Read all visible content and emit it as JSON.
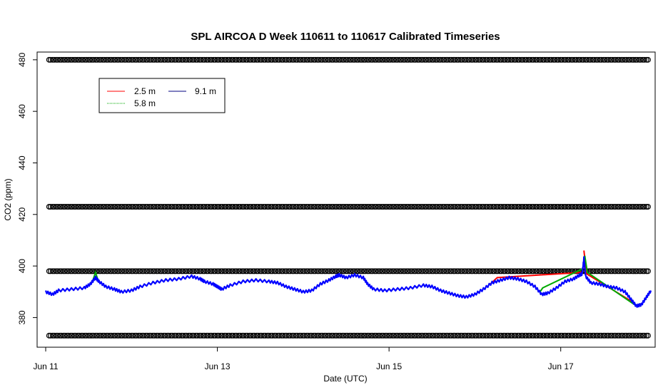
{
  "chart_data": {
    "type": "line",
    "title": "SPL AIRCOA D  Week 110611 to 110617  Calibrated Timeseries",
    "xlabel": "Date (UTC)",
    "ylabel": "CO2 (ppm)",
    "x_axis": "time",
    "xlim_days": [
      -0.1,
      7.1
    ],
    "ylim": [
      368.5,
      483
    ],
    "x_ticks": [
      {
        "day": 0,
        "label": "Jun 11"
      },
      {
        "day": 2,
        "label": "Jun 13"
      },
      {
        "day": 4,
        "label": "Jun 15"
      },
      {
        "day": 6,
        "label": "Jun 17"
      }
    ],
    "y_ticks": [
      380,
      400,
      420,
      440,
      460,
      480
    ],
    "legend": {
      "position": "top-left",
      "entries": [
        {
          "name": "2.5 m",
          "color": "#ff0000"
        },
        {
          "name": "5.8 m",
          "color": "#00aa00"
        },
        {
          "name": "9.1 m",
          "color": "#0000ff"
        }
      ]
    },
    "series": [
      {
        "name": "9.1 m",
        "color": "#0000ff",
        "points": [
          [
            0.0,
            390.0
          ],
          [
            0.08,
            389.0
          ],
          [
            0.15,
            390.5
          ],
          [
            0.3,
            391.0
          ],
          [
            0.45,
            391.5
          ],
          [
            0.52,
            393.0
          ],
          [
            0.58,
            395.5
          ],
          [
            0.62,
            394.0
          ],
          [
            0.7,
            392.0
          ],
          [
            0.8,
            391.0
          ],
          [
            0.88,
            390.0
          ],
          [
            1.0,
            390.5
          ],
          [
            1.1,
            392.0
          ],
          [
            1.25,
            393.5
          ],
          [
            1.4,
            394.5
          ],
          [
            1.55,
            395.0
          ],
          [
            1.7,
            396.0
          ],
          [
            1.8,
            395.0
          ],
          [
            1.85,
            394.0
          ],
          [
            1.95,
            393.0
          ],
          [
            2.0,
            392.0
          ],
          [
            2.05,
            391.0
          ],
          [
            2.15,
            392.5
          ],
          [
            2.3,
            394.0
          ],
          [
            2.45,
            394.5
          ],
          [
            2.6,
            394.0
          ],
          [
            2.7,
            393.5
          ],
          [
            2.8,
            392.0
          ],
          [
            2.9,
            391.0
          ],
          [
            3.0,
            390.0
          ],
          [
            3.1,
            390.5
          ],
          [
            3.2,
            393.0
          ],
          [
            3.3,
            394.5
          ],
          [
            3.38,
            396.0
          ],
          [
            3.42,
            396.5
          ],
          [
            3.5,
            395.5
          ],
          [
            3.6,
            396.5
          ],
          [
            3.7,
            395.5
          ],
          [
            3.75,
            393.0
          ],
          [
            3.82,
            391.0
          ],
          [
            3.95,
            390.5
          ],
          [
            4.1,
            391.0
          ],
          [
            4.25,
            391.5
          ],
          [
            4.4,
            392.5
          ],
          [
            4.5,
            392.0
          ],
          [
            4.6,
            390.5
          ],
          [
            4.7,
            389.5
          ],
          [
            4.8,
            388.5
          ],
          [
            4.9,
            388.0
          ],
          [
            5.0,
            389.0
          ],
          [
            5.1,
            391.0
          ],
          [
            5.2,
            393.5
          ],
          [
            5.3,
            394.5
          ],
          [
            5.4,
            395.5
          ],
          [
            5.5,
            395.0
          ],
          [
            5.6,
            394.0
          ],
          [
            5.7,
            392.0
          ],
          [
            5.78,
            389.0
          ],
          [
            5.85,
            389.5
          ],
          [
            5.95,
            391.5
          ],
          [
            6.05,
            394.0
          ],
          [
            6.15,
            395.0
          ],
          [
            6.22,
            396.5
          ],
          [
            6.25,
            397.0
          ],
          [
            6.27,
            403.0
          ],
          [
            6.29,
            396.0
          ],
          [
            6.35,
            393.5
          ],
          [
            6.45,
            393.0
          ],
          [
            6.55,
            392.0
          ],
          [
            6.65,
            391.5
          ],
          [
            6.75,
            390.0
          ],
          [
            6.82,
            387.0
          ],
          [
            6.88,
            384.5
          ],
          [
            6.94,
            385.0
          ],
          [
            7.0,
            388.0
          ],
          [
            7.05,
            390.5
          ]
        ]
      },
      {
        "name": "2.5 m",
        "color": "#ff0000",
        "points": [
          [
            5.18,
            393.0
          ],
          [
            5.26,
            395.5
          ],
          [
            6.24,
            397.5
          ],
          [
            6.27,
            406.0
          ],
          [
            6.3,
            397.0
          ],
          [
            6.84,
            386.0
          ],
          [
            6.9,
            384.0
          ]
        ]
      },
      {
        "name": "5.8 m",
        "color": "#00aa00",
        "points": [
          [
            0.55,
            394.5
          ],
          [
            0.58,
            397.5
          ],
          [
            0.61,
            394.5
          ],
          [
            5.76,
            390.0
          ],
          [
            5.79,
            391.5
          ],
          [
            6.26,
            399.0
          ],
          [
            6.28,
            404.0
          ],
          [
            6.31,
            397.5
          ],
          [
            6.86,
            385.0
          ],
          [
            6.92,
            383.5
          ]
        ]
      }
    ],
    "calibration_levels_ppm": [
      373,
      398,
      423,
      480
    ],
    "calibration_marker": "circle"
  }
}
